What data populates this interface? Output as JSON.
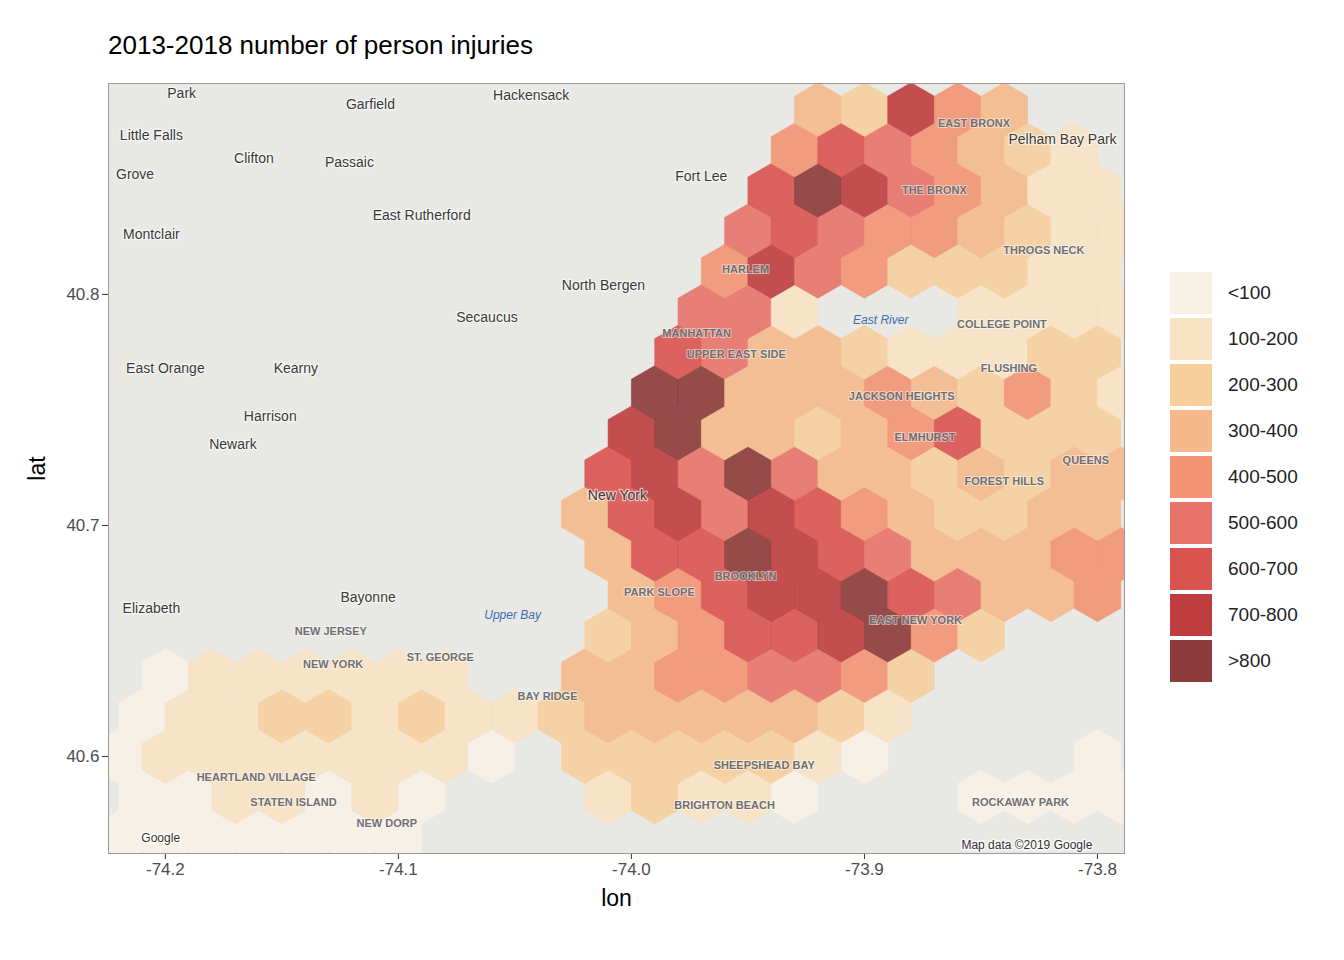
{
  "chart_data": {
    "type": "hexbin",
    "title": "2013-2018 number of person injuries",
    "x_label": "lon",
    "y_label": "lat",
    "xlim": [
      -74.2244,
      -73.7884
    ],
    "ylim": [
      40.558,
      40.8913
    ],
    "xticks": [
      -74.2,
      -74.1,
      {
        "value": -74,
        "label": "-74.0"
      },
      -73.9,
      -73.8
    ],
    "yticks": [
      40.6,
      40.7,
      40.8
    ],
    "legend": "right",
    "color_bins": {
      "thresholds": [
        100,
        200,
        300,
        400,
        500,
        600,
        700,
        800
      ],
      "labels": [
        "<100",
        "100-200",
        "200-300",
        "300-400",
        "400-500",
        "500-600",
        "600-700",
        "700-800",
        ">800"
      ],
      "colors": [
        "#f8f1e6",
        "#f7e2c4",
        "#f6cf9d",
        "#f5b98b",
        "#f29473",
        "#e8736a",
        "#d9534f",
        "#bf3d3e",
        "#8d3a3a"
      ]
    },
    "cells": [
      [
        -74.22,
        40.565,
        50
      ],
      [
        -74.2,
        40.565,
        80
      ],
      [
        -74.18,
        40.565,
        60
      ],
      [
        -74.16,
        40.565,
        50
      ],
      [
        -74.14,
        40.565,
        70
      ],
      [
        -74.12,
        40.565,
        60
      ],
      [
        -74.1,
        40.565,
        40
      ],
      [
        -74.21,
        40.5825,
        60
      ],
      [
        -74.19,
        40.5825,
        90
      ],
      [
        -74.17,
        40.5825,
        120
      ],
      [
        -74.15,
        40.5825,
        150
      ],
      [
        -74.13,
        40.5825,
        90
      ],
      [
        -74.11,
        40.5825,
        110
      ],
      [
        -74.09,
        40.5825,
        70
      ],
      [
        -74.01,
        40.5825,
        150
      ],
      [
        -73.99,
        40.5825,
        220
      ],
      [
        -73.97,
        40.5825,
        180
      ],
      [
        -73.95,
        40.5825,
        170
      ],
      [
        -73.93,
        40.5825,
        90
      ],
      [
        -73.85,
        40.5825,
        60
      ],
      [
        -73.83,
        40.5825,
        80
      ],
      [
        -73.81,
        40.5825,
        90
      ],
      [
        -73.79,
        40.5825,
        70
      ],
      [
        -74.22,
        40.6,
        70
      ],
      [
        -74.2,
        40.6,
        110
      ],
      [
        -74.18,
        40.6,
        150
      ],
      [
        -74.16,
        40.6,
        180
      ],
      [
        -74.14,
        40.6,
        160
      ],
      [
        -74.12,
        40.6,
        150
      ],
      [
        -74.1,
        40.6,
        180
      ],
      [
        -74.08,
        40.6,
        140
      ],
      [
        -74.06,
        40.6,
        90
      ],
      [
        -74.02,
        40.6,
        200
      ],
      [
        -74.0,
        40.6,
        250
      ],
      [
        -73.98,
        40.6,
        280
      ],
      [
        -73.96,
        40.6,
        260
      ],
      [
        -73.94,
        40.6,
        220
      ],
      [
        -73.92,
        40.6,
        150
      ],
      [
        -73.9,
        40.6,
        80
      ],
      [
        -73.8,
        40.6,
        80
      ],
      [
        -74.21,
        40.6175,
        60
      ],
      [
        -74.19,
        40.6175,
        150
      ],
      [
        -74.17,
        40.6175,
        170
      ],
      [
        -74.15,
        40.6175,
        200
      ],
      [
        -74.13,
        40.6175,
        210
      ],
      [
        -74.11,
        40.6175,
        180
      ],
      [
        -74.09,
        40.6175,
        220
      ],
      [
        -74.07,
        40.6175,
        160
      ],
      [
        -74.05,
        40.6175,
        120
      ],
      [
        -74.03,
        40.6175,
        260
      ],
      [
        -74.01,
        40.6175,
        300
      ],
      [
        -73.99,
        40.6175,
        320
      ],
      [
        -73.97,
        40.6175,
        350
      ],
      [
        -73.95,
        40.6175,
        380
      ],
      [
        -73.93,
        40.6175,
        300
      ],
      [
        -73.91,
        40.6175,
        250
      ],
      [
        -73.89,
        40.6175,
        120
      ],
      [
        -74.2,
        40.635,
        60
      ],
      [
        -74.18,
        40.635,
        120
      ],
      [
        -74.16,
        40.635,
        150
      ],
      [
        -74.14,
        40.635,
        140
      ],
      [
        -74.12,
        40.635,
        130
      ],
      [
        -74.1,
        40.635,
        150
      ],
      [
        -74.08,
        40.635,
        170
      ],
      [
        -74.02,
        40.635,
        300
      ],
      [
        -74.0,
        40.635,
        350
      ],
      [
        -73.98,
        40.635,
        420
      ],
      [
        -73.96,
        40.635,
        480
      ],
      [
        -73.94,
        40.635,
        550
      ],
      [
        -73.92,
        40.635,
        520
      ],
      [
        -73.9,
        40.635,
        450
      ],
      [
        -73.88,
        40.635,
        200
      ],
      [
        -74.01,
        40.6525,
        200
      ],
      [
        -73.99,
        40.6525,
        380
      ],
      [
        -73.97,
        40.6525,
        480
      ],
      [
        -73.95,
        40.6525,
        600
      ],
      [
        -73.93,
        40.6525,
        680
      ],
      [
        -73.91,
        40.6525,
        750
      ],
      [
        -73.89,
        40.6525,
        850
      ],
      [
        -73.87,
        40.6525,
        400
      ],
      [
        -73.85,
        40.6525,
        200
      ],
      [
        -74.0,
        40.67,
        300
      ],
      [
        -73.98,
        40.67,
        450
      ],
      [
        -73.96,
        40.67,
        650
      ],
      [
        -73.94,
        40.67,
        780
      ],
      [
        -73.92,
        40.67,
        720
      ],
      [
        -73.9,
        40.67,
        850
      ],
      [
        -73.88,
        40.67,
        650
      ],
      [
        -73.86,
        40.67,
        500
      ],
      [
        -73.84,
        40.67,
        350
      ],
      [
        -73.82,
        40.67,
        300
      ],
      [
        -73.8,
        40.67,
        450
      ],
      [
        -74.01,
        40.6875,
        350
      ],
      [
        -73.99,
        40.6875,
        650
      ],
      [
        -73.97,
        40.6875,
        600
      ],
      [
        -73.95,
        40.6875,
        850
      ],
      [
        -73.93,
        40.6875,
        700
      ],
      [
        -73.91,
        40.6875,
        600
      ],
      [
        -73.89,
        40.6875,
        550
      ],
      [
        -73.87,
        40.6875,
        350
      ],
      [
        -73.85,
        40.6875,
        300
      ],
      [
        -73.83,
        40.6875,
        350
      ],
      [
        -73.81,
        40.6875,
        400
      ],
      [
        -73.79,
        40.6875,
        450
      ],
      [
        -74.02,
        40.705,
        300
      ],
      [
        -74.0,
        40.705,
        650
      ],
      [
        -73.98,
        40.705,
        700
      ],
      [
        -73.96,
        40.705,
        550
      ],
      [
        -73.94,
        40.705,
        750
      ],
      [
        -73.92,
        40.705,
        600
      ],
      [
        -73.9,
        40.705,
        450
      ],
      [
        -73.88,
        40.705,
        300
      ],
      [
        -73.86,
        40.705,
        250
      ],
      [
        -73.84,
        40.705,
        280
      ],
      [
        -73.82,
        40.705,
        300
      ],
      [
        -73.8,
        40.705,
        350
      ],
      [
        -74.01,
        40.7225,
        650
      ],
      [
        -73.99,
        40.7225,
        720
      ],
      [
        -73.97,
        40.7225,
        500
      ],
      [
        -73.95,
        40.7225,
        850
      ],
      [
        -73.93,
        40.7225,
        500
      ],
      [
        -73.91,
        40.7225,
        350
      ],
      [
        -73.89,
        40.7225,
        300
      ],
      [
        -73.87,
        40.7225,
        250
      ],
      [
        -73.85,
        40.7225,
        300
      ],
      [
        -73.83,
        40.7225,
        280
      ],
      [
        -73.81,
        40.7225,
        300
      ],
      [
        -73.79,
        40.7225,
        320
      ],
      [
        -74.0,
        40.74,
        750
      ],
      [
        -73.98,
        40.74,
        880
      ],
      [
        -73.96,
        40.74,
        350
      ],
      [
        -73.94,
        40.74,
        300
      ],
      [
        -73.92,
        40.74,
        280
      ],
      [
        -73.9,
        40.74,
        300
      ],
      [
        -73.88,
        40.74,
        400
      ],
      [
        -73.86,
        40.74,
        650
      ],
      [
        -73.84,
        40.74,
        250
      ],
      [
        -73.82,
        40.74,
        200
      ],
      [
        -73.8,
        40.74,
        250
      ],
      [
        -73.99,
        40.7575,
        900
      ],
      [
        -73.97,
        40.7575,
        850
      ],
      [
        -73.95,
        40.7575,
        300
      ],
      [
        -73.93,
        40.7575,
        350
      ],
      [
        -73.91,
        40.7575,
        300
      ],
      [
        -73.89,
        40.7575,
        450
      ],
      [
        -73.87,
        40.7575,
        350
      ],
      [
        -73.85,
        40.7575,
        250
      ],
      [
        -73.83,
        40.7575,
        400
      ],
      [
        -73.81,
        40.7575,
        200
      ],
      [
        -73.79,
        40.7575,
        180
      ],
      [
        -73.98,
        40.775,
        600
      ],
      [
        -73.96,
        40.775,
        550
      ],
      [
        -73.94,
        40.775,
        300
      ],
      [
        -73.92,
        40.775,
        300
      ],
      [
        -73.9,
        40.775,
        250
      ],
      [
        -73.88,
        40.775,
        100
      ],
      [
        -73.86,
        40.775,
        100
      ],
      [
        -73.84,
        40.775,
        180
      ],
      [
        -73.82,
        40.775,
        250
      ],
      [
        -73.8,
        40.775,
        200
      ],
      [
        -73.97,
        40.7925,
        500
      ],
      [
        -73.95,
        40.7925,
        550
      ],
      [
        -73.93,
        40.7925,
        150
      ],
      [
        -73.85,
        40.7925,
        150
      ],
      [
        -73.83,
        40.7925,
        120
      ],
      [
        -73.81,
        40.7925,
        150
      ],
      [
        -73.79,
        40.7925,
        120
      ],
      [
        -73.96,
        40.81,
        400
      ],
      [
        -73.94,
        40.81,
        780
      ],
      [
        -73.92,
        40.81,
        500
      ],
      [
        -73.9,
        40.81,
        450
      ],
      [
        -73.88,
        40.81,
        200
      ],
      [
        -73.86,
        40.81,
        250
      ],
      [
        -73.84,
        40.81,
        200
      ],
      [
        -73.82,
        40.81,
        150
      ],
      [
        -73.8,
        40.81,
        120
      ],
      [
        -73.95,
        40.8275,
        550
      ],
      [
        -73.93,
        40.8275,
        650
      ],
      [
        -73.91,
        40.8275,
        550
      ],
      [
        -73.89,
        40.8275,
        450
      ],
      [
        -73.87,
        40.8275,
        400
      ],
      [
        -73.85,
        40.8275,
        350
      ],
      [
        -73.83,
        40.8275,
        250
      ],
      [
        -73.81,
        40.8275,
        150
      ],
      [
        -73.79,
        40.8275,
        100
      ],
      [
        -73.94,
        40.845,
        600
      ],
      [
        -73.92,
        40.845,
        820
      ],
      [
        -73.9,
        40.845,
        750
      ],
      [
        -73.88,
        40.845,
        500
      ],
      [
        -73.86,
        40.845,
        450
      ],
      [
        -73.84,
        40.845,
        300
      ],
      [
        -73.82,
        40.845,
        150
      ],
      [
        -73.8,
        40.845,
        100
      ],
      [
        -73.93,
        40.8625,
        450
      ],
      [
        -73.91,
        40.8625,
        650
      ],
      [
        -73.89,
        40.8625,
        550
      ],
      [
        -73.87,
        40.8625,
        450
      ],
      [
        -73.85,
        40.8625,
        350
      ],
      [
        -73.83,
        40.8625,
        250
      ],
      [
        -73.81,
        40.8625,
        100
      ],
      [
        -73.92,
        40.88,
        300
      ],
      [
        -73.9,
        40.88,
        250
      ],
      [
        -73.88,
        40.88,
        750
      ],
      [
        -73.86,
        40.88,
        400
      ],
      [
        -73.84,
        40.88,
        300
      ]
    ],
    "map_labels": {
      "cities": [
        {
          "text": "Park",
          "lon": -74.193,
          "lat": 40.887
        },
        {
          "text": "Garfield",
          "lon": -74.112,
          "lat": 40.882
        },
        {
          "text": "Hackensack",
          "lon": -74.043,
          "lat": 40.886
        },
        {
          "text": "Little Falls",
          "lon": -74.206,
          "lat": 40.869
        },
        {
          "text": "Clifton",
          "lon": -74.162,
          "lat": 40.859
        },
        {
          "text": "Passaic",
          "lon": -74.121,
          "lat": 40.857
        },
        {
          "text": "Grove",
          "lon": -74.213,
          "lat": 40.852
        },
        {
          "text": "Fort Lee",
          "lon": -73.97,
          "lat": 40.851
        },
        {
          "text": "Montclair",
          "lon": -74.206,
          "lat": 40.826
        },
        {
          "text": "East Rutherford",
          "lon": -74.09,
          "lat": 40.834
        },
        {
          "text": "North Bergen",
          "lon": -74.012,
          "lat": 40.804
        },
        {
          "text": "Secaucus",
          "lon": -74.062,
          "lat": 40.79
        },
        {
          "text": "East Orange",
          "lon": -74.2,
          "lat": 40.768
        },
        {
          "text": "Kearny",
          "lon": -74.144,
          "lat": 40.768
        },
        {
          "text": "Harrison",
          "lon": -74.155,
          "lat": 40.747
        },
        {
          "text": "Newark",
          "lon": -74.171,
          "lat": 40.735
        },
        {
          "text": "Elizabeth",
          "lon": -74.206,
          "lat": 40.664
        },
        {
          "text": "Bayonne",
          "lon": -74.113,
          "lat": 40.669
        },
        {
          "text": "New York",
          "lon": -74.006,
          "lat": 40.713
        },
        {
          "text": "Pelham Bay Park",
          "lon": -73.815,
          "lat": 40.867
        }
      ],
      "districts": [
        {
          "text": "NEW JERSEY",
          "lon": -74.129,
          "lat": 40.654
        },
        {
          "text": "NEW YORK",
          "lon": -74.128,
          "lat": 40.64
        },
        {
          "text": "ST. GEORGE",
          "lon": -74.082,
          "lat": 40.643
        },
        {
          "text": "MANHATTAN",
          "lon": -73.972,
          "lat": 40.783
        },
        {
          "text": "UPPER EAST SIDE",
          "lon": -73.955,
          "lat": 40.774
        },
        {
          "text": "HARLEM",
          "lon": -73.951,
          "lat": 40.811
        },
        {
          "text": "EAST BRONX",
          "lon": -73.853,
          "lat": 40.874
        },
        {
          "text": "THE BRONX",
          "lon": -73.87,
          "lat": 40.845
        },
        {
          "text": "THROGS NECK",
          "lon": -73.823,
          "lat": 40.819
        },
        {
          "text": "COLLEGE POINT",
          "lon": -73.841,
          "lat": 40.787
        },
        {
          "text": "FLUSHING",
          "lon": -73.838,
          "lat": 40.768
        },
        {
          "text": "JACKSON HEIGHTS",
          "lon": -73.884,
          "lat": 40.756
        },
        {
          "text": "ELMHURST",
          "lon": -73.874,
          "lat": 40.738
        },
        {
          "text": "FOREST HILLS",
          "lon": -73.84,
          "lat": 40.719
        },
        {
          "text": "QUEENS",
          "lon": -73.805,
          "lat": 40.728
        },
        {
          "text": "BROOKLYN",
          "lon": -73.951,
          "lat": 40.678
        },
        {
          "text": "PARK SLOPE",
          "lon": -73.988,
          "lat": 40.671
        },
        {
          "text": "BAY RIDGE",
          "lon": -74.036,
          "lat": 40.626
        },
        {
          "text": "EAST NEW YORK",
          "lon": -73.878,
          "lat": 40.659
        },
        {
          "text": "SHEEPSHEAD BAY",
          "lon": -73.943,
          "lat": 40.596
        },
        {
          "text": "BRIGHTON BEACH",
          "lon": -73.96,
          "lat": 40.579
        },
        {
          "text": "ROCKAWAY PARK",
          "lon": -73.833,
          "lat": 40.58
        },
        {
          "text": "HEARTLAND VILLAGE",
          "lon": -74.161,
          "lat": 40.591
        },
        {
          "text": "STATEN ISLAND",
          "lon": -74.145,
          "lat": 40.58
        },
        {
          "text": "NEW DORP",
          "lon": -74.105,
          "lat": 40.571
        }
      ],
      "water": [
        {
          "text": "Upper Bay",
          "lon": -74.051,
          "lat": 40.661
        },
        {
          "text": "East River",
          "lon": -73.893,
          "lat": 40.789
        }
      ],
      "credits": [
        {
          "text": "Google",
          "lon": -74.202,
          "lat": 40.5645
        },
        {
          "text": "Map data ©2019 Google",
          "lon": -73.8303,
          "lat": 40.5615
        }
      ]
    }
  }
}
